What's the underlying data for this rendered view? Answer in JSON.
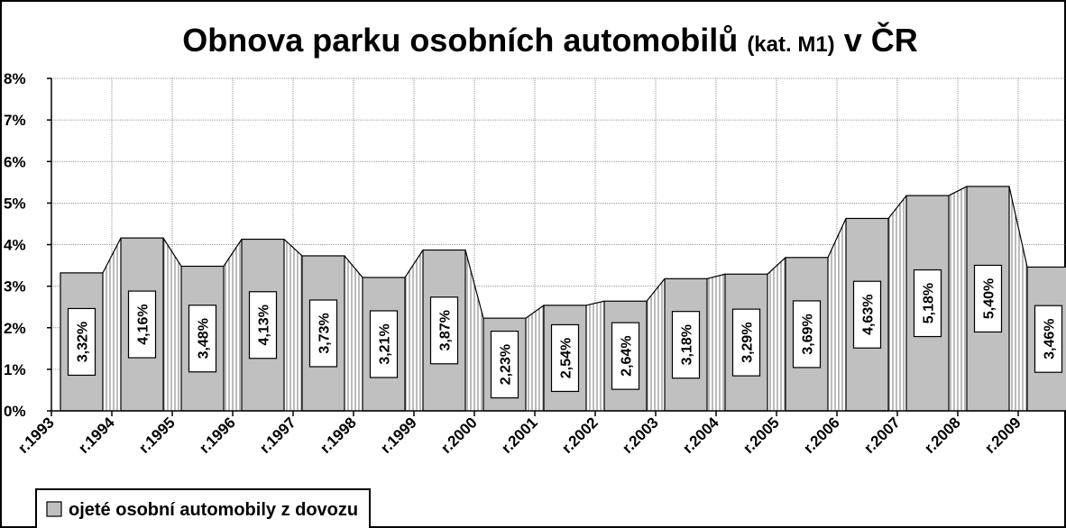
{
  "chart_data": {
    "type": "bar",
    "title": "Obnova parku osobních automobilů",
    "subtitle": "(kat. M1)",
    "title_suffix": "v ČR",
    "categories": [
      "r.1993",
      "r.1994",
      "r.1995",
      "r.1996",
      "r.1997",
      "r.1998",
      "r.1999",
      "r.2000",
      "r.2001",
      "r.2002",
      "r.2003",
      "r.2004",
      "r.2005",
      "r.2006",
      "r.2007",
      "r.2008",
      "r.2009"
    ],
    "series": [
      {
        "name": "ojeté osobní automobily z dovozu",
        "color": "#c0c0c0",
        "values": [
          3.32,
          4.16,
          3.48,
          4.13,
          3.73,
          3.21,
          3.87,
          2.23,
          2.54,
          2.64,
          3.18,
          3.29,
          3.69,
          4.63,
          5.18,
          5.4,
          3.46
        ],
        "value_labels": [
          "3,32%",
          "4,16%",
          "3,48%",
          "4,13%",
          "3,73%",
          "3,21%",
          "3,87%",
          "2,23%",
          "2,54%",
          "2,64%",
          "3,18%",
          "3,29%",
          "3,69%",
          "4,63%",
          "5,18%",
          "5,40%",
          "3,46%"
        ]
      }
    ],
    "ylim": [
      0,
      8
    ],
    "yticks": [
      {
        "value": 0,
        "label": "0%"
      },
      {
        "value": 1,
        "label": "1%"
      },
      {
        "value": 2,
        "label": "2%"
      },
      {
        "value": 3,
        "label": "3%"
      },
      {
        "value": 4,
        "label": "4%"
      },
      {
        "value": 5,
        "label": "5%"
      },
      {
        "value": 6,
        "label": "6%"
      },
      {
        "value": 7,
        "label": "7%"
      },
      {
        "value": 8,
        "label": "8%"
      }
    ],
    "grid": true
  }
}
